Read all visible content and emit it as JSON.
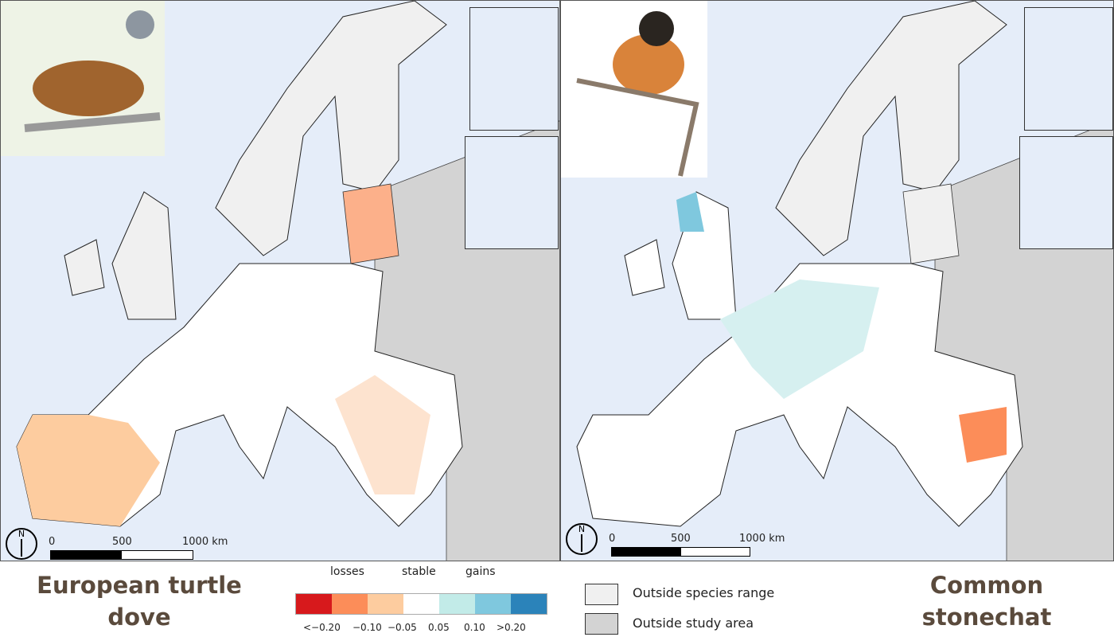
{
  "panels": [
    {
      "species": "European turtle dove",
      "scale_labels": [
        "0",
        "500",
        "1000 km"
      ],
      "north": "N"
    },
    {
      "species": "Common stonechat",
      "scale_labels": [
        "0",
        "500",
        "1000 km"
      ],
      "north": "N"
    }
  ],
  "legend": {
    "headers": [
      "losses",
      "stable",
      "gains"
    ],
    "colors": [
      "#d7191c",
      "#fc8d59",
      "#fdcc9f",
      "#ffffff",
      "#c2ebe8",
      "#7fc8de",
      "#2b83ba"
    ],
    "ticks": [
      "<−0.20",
      "−0.10",
      "−0.05",
      "0.05",
      "0.10",
      ">0.20"
    ],
    "outside_range": {
      "label": "Outside species range",
      "color": "#f0f0f0"
    },
    "outside_study": {
      "label": "Outside study area",
      "color": "#d3d3d3"
    }
  },
  "colors": {
    "sea": "#e5edf9",
    "species_title": "#5a4a3c"
  }
}
